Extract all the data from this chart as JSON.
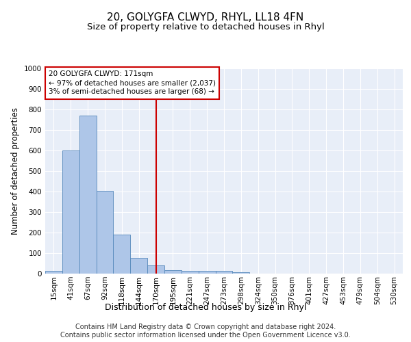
{
  "title": "20, GOLYGFA CLWYD, RHYL, LL18 4FN",
  "subtitle": "Size of property relative to detached houses in Rhyl",
  "xlabel": "Distribution of detached houses by size in Rhyl",
  "ylabel": "Number of detached properties",
  "bar_labels": [
    "15sqm",
    "41sqm",
    "67sqm",
    "92sqm",
    "118sqm",
    "144sqm",
    "170sqm",
    "195sqm",
    "221sqm",
    "247sqm",
    "273sqm",
    "298sqm",
    "324sqm",
    "350sqm",
    "376sqm",
    "401sqm",
    "427sqm",
    "453sqm",
    "479sqm",
    "504sqm",
    "530sqm"
  ],
  "bar_values": [
    15,
    600,
    770,
    405,
    190,
    78,
    40,
    18,
    15,
    12,
    12,
    8,
    0,
    0,
    0,
    0,
    0,
    0,
    0,
    0,
    0
  ],
  "bar_color": "#aec6e8",
  "bar_edge_color": "#5588bb",
  "vline_index": 6,
  "vline_color": "#cc0000",
  "ylim": [
    0,
    1000
  ],
  "yticks": [
    0,
    100,
    200,
    300,
    400,
    500,
    600,
    700,
    800,
    900,
    1000
  ],
  "annotation_line1": "20 GOLYGFA CLWYD: 171sqm",
  "annotation_line2": "← 97% of detached houses are smaller (2,037)",
  "annotation_line3": "3% of semi-detached houses are larger (68) →",
  "footer_line1": "Contains HM Land Registry data © Crown copyright and database right 2024.",
  "footer_line2": "Contains public sector information licensed under the Open Government Licence v3.0.",
  "bg_color": "#e8eef8",
  "grid_color": "#ffffff",
  "title_fontsize": 11,
  "subtitle_fontsize": 9.5,
  "ylabel_fontsize": 8.5,
  "xlabel_fontsize": 9,
  "tick_fontsize": 7.5,
  "ann_fontsize": 7.5,
  "footer_fontsize": 7
}
